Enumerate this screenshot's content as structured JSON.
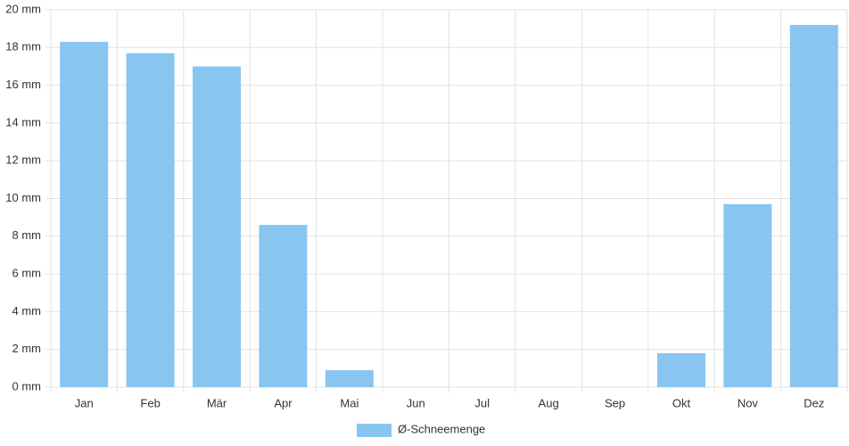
{
  "chart_data": {
    "type": "bar",
    "categories": [
      "Jan",
      "Feb",
      "Mär",
      "Apr",
      "Mai",
      "Jun",
      "Jul",
      "Aug",
      "Sep",
      "Okt",
      "Nov",
      "Dez"
    ],
    "series": [
      {
        "name": "Ø-Schneemenge",
        "color": "#88c5f1",
        "values": [
          18.3,
          17.7,
          17.0,
          8.6,
          0.9,
          0,
          0,
          0,
          0,
          1.8,
          9.7,
          19.2
        ]
      }
    ],
    "ylim": [
      0,
      20
    ],
    "yticks": [
      {
        "value": 0,
        "label": "0 mm"
      },
      {
        "value": 2,
        "label": "2 mm"
      },
      {
        "value": 4,
        "label": "4 mm"
      },
      {
        "value": 6,
        "label": "6 mm"
      },
      {
        "value": 8,
        "label": "8 mm"
      },
      {
        "value": 10,
        "label": "10 mm"
      },
      {
        "value": 12,
        "label": "12 mm"
      },
      {
        "value": 14,
        "label": "14 mm"
      },
      {
        "value": 16,
        "label": "16 mm"
      },
      {
        "value": 18,
        "label": "18 mm"
      },
      {
        "value": 20,
        "label": "20 mm"
      }
    ],
    "grid": true,
    "legend": "bottom"
  }
}
